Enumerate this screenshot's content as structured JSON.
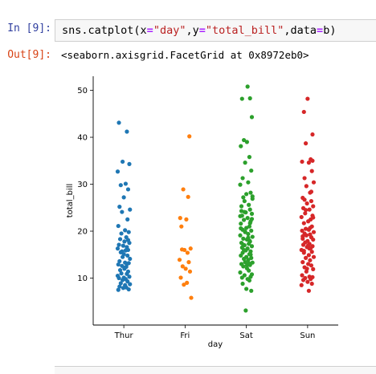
{
  "cell": {
    "in_prompt": "In [9]:",
    "out_prompt": "Out[9]:",
    "code_tokens": [
      {
        "t": "sns.catplot(x",
        "c": "plain"
      },
      {
        "t": "=",
        "c": "op"
      },
      {
        "t": "\"day\"",
        "c": "str"
      },
      {
        "t": ",y",
        "c": "plain"
      },
      {
        "t": "=",
        "c": "op"
      },
      {
        "t": "\"total_bill\"",
        "c": "str"
      },
      {
        "t": ",data",
        "c": "plain"
      },
      {
        "t": "=",
        "c": "op"
      },
      {
        "t": "b)",
        "c": "plain"
      }
    ],
    "output_text": "<seaborn.axisgrid.FacetGrid at 0x8972eb0>"
  },
  "chart_data": {
    "type": "scatter",
    "xlabel": "day",
    "ylabel": "total_bill",
    "categories": [
      "Thur",
      "Fri",
      "Sat",
      "Sun"
    ],
    "ylim": [
      0,
      53
    ],
    "yticks": [
      10,
      20,
      30,
      40,
      50
    ],
    "grid": false,
    "series": [
      {
        "color": "#1f77b4",
        "jitter": [
          -0.08,
          0.05,
          -0.02,
          0.09,
          -0.1,
          0.03,
          -0.05,
          0.07,
          0.0,
          -0.07,
          0.1,
          -0.03,
          0.06,
          -0.09,
          0.02,
          0.08,
          -0.04,
          0.04,
          -0.06,
          0.01,
          0.09,
          -0.08,
          -0.01,
          0.05,
          -0.1,
          0.07,
          0.03,
          -0.05,
          0.0,
          0.06,
          -0.02,
          0.1,
          -0.07,
          0.02,
          0.08,
          -0.09,
          -0.03,
          0.04,
          0.01,
          -0.06,
          0.07,
          -0.04,
          0.05,
          -0.1,
          0.09,
          0.0,
          -0.08,
          0.03,
          -0.02,
          0.06,
          -0.05,
          0.1,
          0.02,
          -0.07,
          0.04,
          -0.01,
          0.08,
          -0.09,
          0.01,
          0.05,
          -0.03,
          0.07
        ],
        "values": [
          43.1,
          41.2,
          34.8,
          34.3,
          32.7,
          30.1,
          29.8,
          28.9,
          27.2,
          25.2,
          24.6,
          24.1,
          22.5,
          21.1,
          20.2,
          19.8,
          19.5,
          18.7,
          18.3,
          17.8,
          17.5,
          17.1,
          16.9,
          16.6,
          16.3,
          16.0,
          15.9,
          15.5,
          15.1,
          14.8,
          14.5,
          14.1,
          13.6,
          13.3,
          13.2,
          12.9,
          12.6,
          12.4,
          12.0,
          11.7,
          11.4,
          11.0,
          10.9,
          10.5,
          10.3,
          10.1,
          10.0,
          9.8,
          9.6,
          9.3,
          8.9,
          8.7,
          8.5,
          8.2,
          8.0,
          7.9,
          7.6,
          7.5,
          12.2,
          13.0,
          15.7,
          18.1
        ]
      },
      {
        "color": "#ff7f0e",
        "jitter": [
          0.07,
          -0.03,
          0.05,
          -0.08,
          0.02,
          -0.06,
          0.09,
          -0.01,
          0.04,
          -0.09,
          0.06,
          -0.04,
          0.01,
          0.08,
          -0.07,
          0.03,
          -0.02,
          0.1,
          -0.05
        ],
        "values": [
          40.2,
          28.9,
          27.3,
          22.8,
          22.5,
          21.0,
          16.3,
          16.0,
          15.4,
          13.9,
          13.4,
          12.5,
          12.0,
          11.4,
          10.1,
          9.0,
          8.6,
          5.8,
          16.1
        ]
      },
      {
        "color": "#2ca02c",
        "jitter": [
          0.02,
          0.06,
          -0.07,
          0.09,
          -0.04,
          0.01,
          -0.09,
          0.05,
          -0.02,
          0.08,
          -0.06,
          0.03,
          -0.1,
          0.07,
          0.0,
          -0.05,
          0.1,
          -0.03,
          0.04,
          -0.08,
          0.06,
          -0.01,
          0.09,
          -0.07,
          0.02,
          -0.04,
          0.07,
          -0.09,
          0.05,
          0.0,
          -0.06,
          0.08,
          -0.02,
          0.03,
          -0.1,
          0.1,
          -0.05,
          0.01,
          0.06,
          -0.08,
          0.04,
          -0.03,
          0.09,
          -0.07,
          0.02,
          -0.01,
          0.07,
          -0.06,
          0.05,
          -0.09,
          0.0,
          0.08,
          -0.04,
          0.03,
          -0.02,
          0.1,
          -0.08,
          0.06,
          -0.05,
          0.01,
          0.04,
          -0.1,
          0.09,
          -0.03,
          0.07,
          -0.07,
          0.02,
          0.05,
          -0.06,
          0.0,
          0.08,
          -0.01,
          -0.09,
          0.06,
          0.03,
          -0.04,
          0.1,
          -0.08,
          0.04,
          -0.02,
          0.07,
          -0.05,
          0.01,
          0.09,
          -0.1,
          0.05,
          -0.03,
          0.02,
          -0.07
        ],
        "values": [
          50.8,
          48.3,
          48.2,
          44.3,
          39.4,
          39.0,
          38.1,
          35.8,
          34.6,
          32.9,
          31.3,
          30.4,
          29.9,
          28.2,
          27.9,
          27.2,
          26.9,
          26.4,
          25.6,
          25.3,
          24.6,
          24.0,
          23.7,
          23.3,
          22.8,
          22.4,
          22.1,
          21.6,
          21.0,
          20.7,
          20.3,
          20.1,
          19.8,
          19.4,
          19.1,
          18.8,
          18.4,
          18.2,
          17.8,
          17.5,
          17.3,
          17.0,
          16.8,
          16.5,
          16.3,
          15.9,
          15.7,
          15.4,
          15.1,
          14.8,
          14.5,
          14.3,
          14.1,
          13.9,
          13.4,
          13.3,
          13.0,
          12.8,
          12.5,
          12.1,
          11.6,
          11.2,
          10.8,
          10.6,
          10.3,
          10.1,
          9.8,
          9.5,
          8.8,
          7.7,
          7.3,
          3.1,
          20.6,
          21.7,
          18.6,
          16.0,
          27.4,
          24.3,
          13.2,
          19.9,
          15.0,
          17.1,
          12.7,
          22.6,
          23.2,
          18.0,
          24.1
        ]
      },
      {
        "color": "#d62728",
        "jitter": [
          0.0,
          -0.06,
          0.08,
          -0.03,
          0.05,
          -0.09,
          0.02,
          0.07,
          -0.05,
          0.1,
          -0.02,
          0.04,
          -0.08,
          0.06,
          -0.01,
          0.09,
          -0.07,
          0.03,
          -0.04,
          0.08,
          -0.1,
          0.05,
          0.01,
          -0.06,
          0.07,
          -0.03,
          0.02,
          -0.09,
          0.1,
          -0.05,
          0.04,
          -0.02,
          0.06,
          -0.08,
          0.09,
          0.0,
          -0.04,
          0.03,
          -0.07,
          0.08,
          -0.01,
          0.05,
          -0.1,
          0.07,
          -0.06,
          0.02,
          0.1,
          -0.03,
          0.04,
          -0.08,
          0.01,
          0.06,
          -0.05,
          0.09,
          -0.02,
          -0.09,
          0.03,
          0.08,
          -0.04,
          0.05,
          -0.07,
          0.0,
          0.07,
          -0.1,
          0.02,
          -0.05,
          0.06,
          0.01,
          -0.08,
          0.09,
          -0.03,
          0.04,
          -0.06,
          0.08,
          -0.01,
          0.03
        ],
        "values": [
          48.2,
          45.4,
          40.6,
          38.7,
          35.3,
          34.8,
          34.6,
          32.8,
          31.3,
          30.4,
          29.6,
          28.2,
          27.1,
          26.4,
          25.9,
          25.3,
          24.9,
          24.6,
          23.8,
          23.3,
          23.0,
          22.5,
          22.1,
          21.7,
          21.0,
          20.5,
          20.3,
          20.1,
          19.8,
          19.5,
          19.3,
          19.1,
          18.7,
          18.4,
          18.2,
          17.9,
          17.6,
          17.3,
          17.1,
          16.8,
          16.6,
          16.4,
          16.0,
          15.6,
          15.4,
          14.9,
          14.5,
          14.3,
          13.8,
          13.4,
          13.0,
          12.7,
          12.3,
          11.9,
          11.4,
          10.6,
          10.3,
          10.2,
          10.0,
          9.8,
          9.6,
          9.2,
          8.8,
          8.5,
          7.3,
          26.7,
          28.4,
          17.0,
          18.9,
          22.9,
          24.5,
          20.7,
          15.8,
          35.0,
          12.0,
          16.3
        ]
      }
    ]
  }
}
